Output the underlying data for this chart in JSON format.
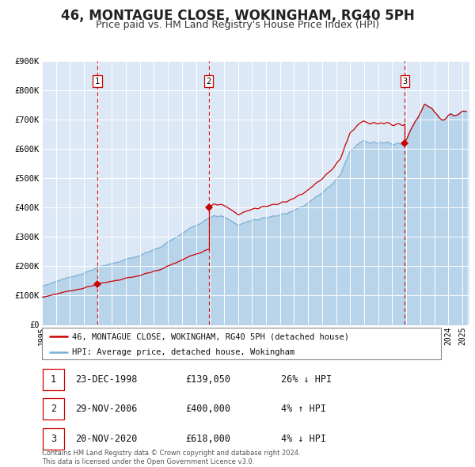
{
  "title": "46, MONTAGUE CLOSE, WOKINGHAM, RG40 5PH",
  "subtitle": "Price paid vs. HM Land Registry's House Price Index (HPI)",
  "ylim": [
    0,
    900000
  ],
  "yticks": [
    0,
    100000,
    200000,
    300000,
    400000,
    500000,
    600000,
    700000,
    800000,
    900000
  ],
  "ytick_labels": [
    "£0",
    "£100K",
    "£200K",
    "£300K",
    "£400K",
    "£500K",
    "£600K",
    "£700K",
    "£800K",
    "£900K"
  ],
  "xmin": 1995.0,
  "xmax": 2025.5,
  "background_color": "#ffffff",
  "plot_bg_color": "#dce8f5",
  "grid_color": "#ffffff",
  "sale_color": "#cc0000",
  "hpi_color": "#7ab0d4",
  "hpi_fill_color": "#b8d4ea",
  "dashed_line_color": "#cc0000",
  "purchases": [
    {
      "year_float": 1998.97,
      "price": 139050,
      "label": "1",
      "date": "23-DEC-1998"
    },
    {
      "year_float": 2006.91,
      "price": 400000,
      "label": "2",
      "date": "29-NOV-2006"
    },
    {
      "year_float": 2020.9,
      "price": 618000,
      "label": "3",
      "date": "20-NOV-2020"
    }
  ],
  "legend_entries": [
    {
      "label": "46, MONTAGUE CLOSE, WOKINGHAM, RG40 5PH (detached house)",
      "color": "#cc0000"
    },
    {
      "label": "HPI: Average price, detached house, Wokingham",
      "color": "#7ab0d4"
    }
  ],
  "table_rows": [
    {
      "num": "1",
      "date": "23-DEC-1998",
      "price": "£139,050",
      "pct": "26% ↓ HPI"
    },
    {
      "num": "2",
      "date": "29-NOV-2006",
      "price": "£400,000",
      "pct": "4% ↑ HPI"
    },
    {
      "num": "3",
      "date": "20-NOV-2020",
      "price": "£618,000",
      "pct": "4% ↓ HPI"
    }
  ],
  "footer": "Contains HM Land Registry data © Crown copyright and database right 2024.\nThis data is licensed under the Open Government Licence v3.0.",
  "title_fontsize": 12,
  "subtitle_fontsize": 9,
  "xtick_years": [
    1995,
    1996,
    1997,
    1998,
    1999,
    2000,
    2001,
    2002,
    2003,
    2004,
    2005,
    2006,
    2007,
    2008,
    2009,
    2010,
    2011,
    2012,
    2013,
    2014,
    2015,
    2016,
    2017,
    2018,
    2019,
    2020,
    2021,
    2022,
    2023,
    2024,
    2025
  ]
}
